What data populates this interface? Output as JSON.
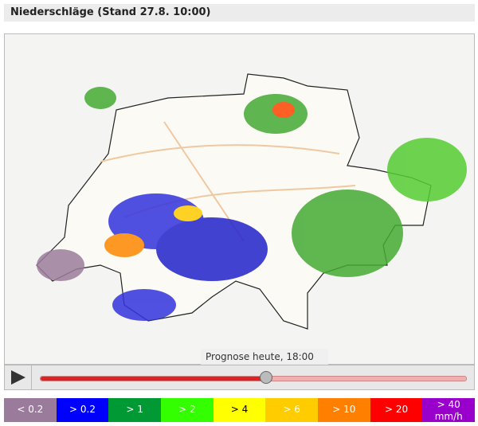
{
  "header": {
    "title": "Niederschläge (Stand 27.8. 10:00)"
  },
  "map": {
    "caption": "Prognose heute, 18:00"
  },
  "legend": {
    "items": [
      {
        "label": "< 0.2",
        "color": "#9b7b9b"
      },
      {
        "label": "> 0.2",
        "color": "#0000ff"
      },
      {
        "label": "> 1",
        "color": "#009933"
      },
      {
        "label": "> 2",
        "color": "#33ff00"
      },
      {
        "label": "> 4",
        "color": "#ffff00"
      },
      {
        "label": "> 6",
        "color": "#ffcc00"
      },
      {
        "label": "> 10",
        "color": "#ff8000"
      },
      {
        "label": "> 20",
        "color": "#ff0000"
      },
      {
        "label": "> 40",
        "color": "#9900cc"
      }
    ],
    "unit": "mm/h"
  }
}
